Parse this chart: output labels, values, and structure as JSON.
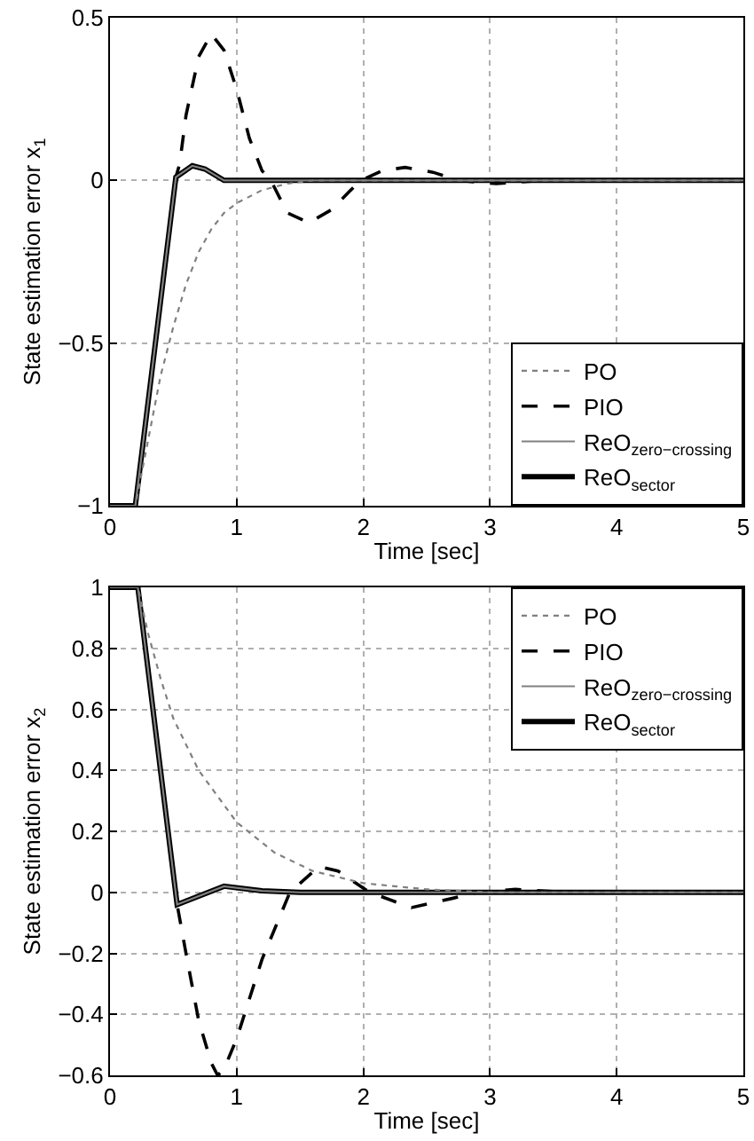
{
  "chart_data": [
    {
      "type": "line",
      "xlabel": "Time [sec]",
      "ylabel": "State estimation error x$_{1}$",
      "xlim": [
        0,
        5
      ],
      "xticks": [
        0,
        1,
        2,
        3,
        4,
        5
      ],
      "ylim": [
        -1,
        0.5
      ],
      "yticks": [
        -1,
        -0.5,
        0,
        0.5
      ],
      "grid": true,
      "legend": "bottom right",
      "marker": "none",
      "series": [
        {
          "name": "PO",
          "color": "#808080",
          "line_style": "dotted",
          "x": [
            0,
            0.2,
            0.3,
            0.4,
            0.5,
            0.6,
            0.7,
            0.8,
            0.9,
            1.0,
            1.2,
            1.4,
            1.6,
            5
          ],
          "values": [
            -1,
            -1,
            -0.8,
            -0.6,
            -0.45,
            -0.32,
            -0.22,
            -0.15,
            -0.1,
            -0.07,
            -0.03,
            -0.01,
            0,
            0
          ]
        },
        {
          "name": "PIO",
          "color": "#000000",
          "line_style": "dashed",
          "x": [
            0,
            0.2,
            0.52,
            0.55,
            0.6,
            0.7,
            0.8,
            0.9,
            1.0,
            1.1,
            1.2,
            1.27,
            1.4,
            1.57,
            1.75,
            1.9,
            1.98,
            2.15,
            2.33,
            2.55,
            2.75,
            3.05,
            3.4,
            5
          ],
          "values": [
            -1,
            -1,
            0.01,
            0.05,
            0.2,
            0.38,
            0.45,
            0.4,
            0.28,
            0.13,
            0.03,
            0,
            -0.1,
            -0.13,
            -0.09,
            -0.03,
            0,
            0.03,
            0.04,
            0.025,
            0,
            -0.01,
            0,
            0
          ]
        },
        {
          "name": "ReO$_{zero−crossing}$",
          "color": "#808080",
          "line_style": "solid",
          "x": [
            0,
            0.2,
            0.52,
            0.65,
            0.75,
            0.9,
            5
          ],
          "values": [
            -1,
            -1,
            0.01,
            0.045,
            0.035,
            0,
            0
          ]
        },
        {
          "name": "ReO$_{sector}$",
          "color": "#000000",
          "line_style": "solid",
          "x": [
            0,
            0.2,
            0.52,
            0.65,
            0.75,
            0.9,
            5
          ],
          "values": [
            -1,
            -1,
            0.01,
            0.045,
            0.035,
            0,
            0
          ]
        }
      ]
    },
    {
      "type": "line",
      "xlabel": "Time [sec]",
      "ylabel": "State estimation error x$_{2}$",
      "xlim": [
        0,
        5
      ],
      "xticks": [
        0,
        1,
        2,
        3,
        4,
        5
      ],
      "ylim": [
        -0.6,
        1
      ],
      "yticks": [
        -0.6,
        -0.4,
        -0.2,
        0,
        0.2,
        0.4,
        0.6,
        0.8,
        1
      ],
      "grid": true,
      "legend": "top right",
      "marker": "none",
      "series": [
        {
          "name": "PO",
          "color": "#808080",
          "line_style": "dotted",
          "x": [
            0,
            0.22,
            0.3,
            0.4,
            0.5,
            0.7,
            1.0,
            1.3,
            1.6,
            2.0,
            2.5,
            3,
            5
          ],
          "values": [
            1,
            1,
            0.85,
            0.7,
            0.57,
            0.4,
            0.23,
            0.13,
            0.07,
            0.03,
            0.01,
            0,
            0
          ]
        },
        {
          "name": "PIO",
          "color": "#000000",
          "line_style": "dashed",
          "x": [
            0,
            0.22,
            0.53,
            0.6,
            0.7,
            0.8,
            0.85,
            0.9,
            1.0,
            1.2,
            1.42,
            1.65,
            1.8,
            2.05,
            2.38,
            2.7,
            2.9,
            3.2,
            3.6,
            5
          ],
          "values": [
            1,
            1,
            -0.04,
            -0.2,
            -0.42,
            -0.56,
            -0.6,
            -0.58,
            -0.48,
            -0.22,
            0,
            0.085,
            0.07,
            0,
            -0.05,
            -0.02,
            0,
            0.01,
            0,
            0
          ]
        },
        {
          "name": "ReO$_{zero−crossing}$",
          "color": "#808080",
          "line_style": "solid",
          "x": [
            0,
            0.22,
            0.53,
            0.9,
            1.2,
            1.5,
            5
          ],
          "values": [
            1,
            1,
            -0.04,
            0.02,
            0.005,
            0,
            0
          ]
        },
        {
          "name": "ReO$_{sector}$",
          "color": "#000000",
          "line_style": "solid",
          "x": [
            0,
            0.22,
            0.53,
            0.9,
            1.2,
            1.5,
            5
          ],
          "values": [
            1,
            1,
            -0.04,
            0.02,
            0.005,
            0,
            0
          ]
        }
      ]
    }
  ]
}
